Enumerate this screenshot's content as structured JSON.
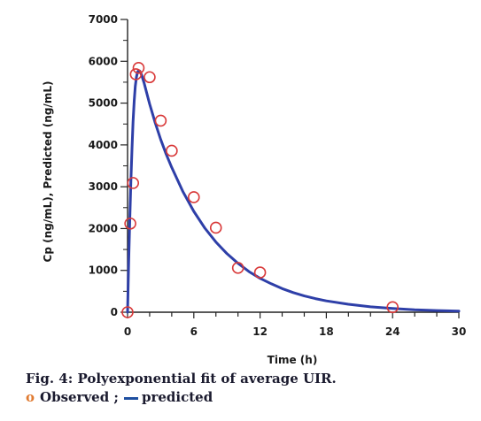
{
  "chart_data": {
    "type": "line",
    "xlabel": "Time (h)",
    "ylabel": "Cp (ng/mL), Predicted (ng/mL)",
    "xlim": [
      0,
      30
    ],
    "ylim": [
      0,
      7000
    ],
    "xticks": [
      0,
      6,
      12,
      18,
      24,
      30
    ],
    "yticks": [
      0,
      1000,
      2000,
      3000,
      4000,
      5000,
      6000,
      7000
    ],
    "series": [
      {
        "name": "Observed",
        "kind": "scatter",
        "color": "#d93a3a",
        "x": [
          0,
          0.25,
          0.5,
          0.75,
          1,
          2,
          3,
          4,
          6,
          8,
          10,
          12,
          24
        ],
        "y": [
          0,
          2120,
          3090,
          5690,
          5840,
          5620,
          4580,
          3860,
          2750,
          2020,
          1060,
          950,
          120
        ]
      },
      {
        "name": "predicted",
        "kind": "line",
        "color": "#2e3fa8",
        "x": [
          0,
          0.1,
          0.2,
          0.3,
          0.4,
          0.5,
          0.6,
          0.7,
          0.8,
          0.9,
          1.0,
          1.1,
          1.2,
          1.3,
          1.5,
          1.75,
          2,
          2.5,
          3,
          3.5,
          4,
          5,
          6,
          7,
          8,
          9,
          10,
          11,
          12,
          13,
          14,
          15,
          16,
          17,
          18,
          20,
          22,
          24,
          26,
          28,
          30
        ],
        "y": [
          0,
          1150,
          2200,
          3100,
          3900,
          4550,
          5050,
          5400,
          5620,
          5740,
          5780,
          5770,
          5720,
          5650,
          5480,
          5230,
          4980,
          4530,
          4130,
          3780,
          3460,
          2890,
          2410,
          2010,
          1680,
          1400,
          1170,
          970,
          810,
          680,
          565,
          470,
          390,
          325,
          270,
          190,
          130,
          90,
          60,
          40,
          28
        ]
      }
    ]
  },
  "caption": {
    "figure": "Fig. 4: Polyexponential fit of average UIR.",
    "legend_observed_symbol": "o",
    "legend_observed": "Observed ;",
    "legend_predicted": "predicted"
  }
}
